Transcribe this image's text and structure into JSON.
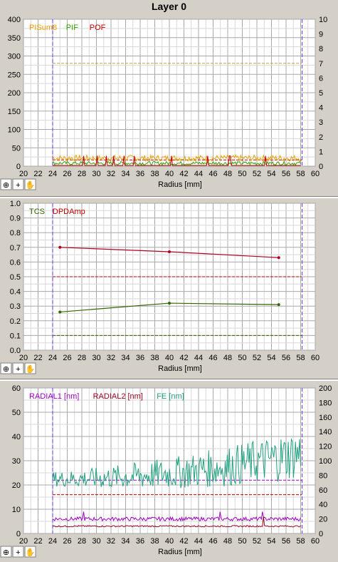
{
  "title": "Layer 0",
  "toolbar_icons": [
    "zoom-icon",
    "crosshair-icon",
    "hand-pan-icon"
  ],
  "chart_data": [
    {
      "type": "line",
      "xlabel": "Radius [mm]",
      "xlim": [
        20,
        60
      ],
      "x_ticks": [
        "20",
        "22",
        "24",
        "26",
        "28",
        "30",
        "32",
        "34",
        "36",
        "38",
        "40",
        "42",
        "44",
        "46",
        "48",
        "50",
        "52",
        "54",
        "56",
        "58",
        "60"
      ],
      "ylim_left": [
        0,
        400
      ],
      "y_ticks_left": [
        "0",
        "50",
        "100",
        "150",
        "200",
        "250",
        "300",
        "350",
        "400"
      ],
      "ylim_right": [
        0,
        10
      ],
      "y_ticks_right": [
        "0",
        "1",
        "2",
        "3",
        "4",
        "5",
        "6",
        "7",
        "8",
        "9",
        "10"
      ],
      "legend": [
        {
          "name": "PISum8",
          "color": "#e8a000"
        },
        {
          "name": "PIF",
          "color": "#33a000"
        },
        {
          "name": "POF",
          "color": "#c00000"
        }
      ],
      "limits": [
        {
          "axis": "left",
          "value": 280,
          "color": "#c8a040"
        },
        {
          "axis": "left",
          "value": 17,
          "color": "#c00000"
        }
      ],
      "markers_x": [
        24,
        58.2
      ],
      "series": [
        {
          "name": "PISum8",
          "color": "#e8a000",
          "axis": "left",
          "x_range": [
            24,
            58
          ],
          "level": 22,
          "noise": 8
        },
        {
          "name": "PIF",
          "color": "#33a000",
          "axis": "left",
          "x_range": [
            24,
            58
          ],
          "level": 8,
          "noise": 5
        },
        {
          "name": "POF",
          "color": "#c00000",
          "axis": "right",
          "x_range": [
            24,
            58
          ],
          "level": 0.05,
          "spikes_x": [
            28.2,
            30.1,
            31.4,
            32.3,
            33.8,
            35.2,
            40.3,
            45.2,
            48.3,
            53.2
          ],
          "spike_value": 0.7
        }
      ]
    },
    {
      "type": "line",
      "xlabel": "Radius [mm]",
      "xlim": [
        20,
        60
      ],
      "x_ticks": [
        "20",
        "22",
        "24",
        "26",
        "28",
        "30",
        "32",
        "34",
        "36",
        "38",
        "40",
        "42",
        "44",
        "46",
        "48",
        "50",
        "52",
        "54",
        "56",
        "58",
        "60"
      ],
      "ylim": [
        0,
        1
      ],
      "y_ticks": [
        "0.0",
        "0.1",
        "0.2",
        "0.3",
        "0.4",
        "0.5",
        "0.6",
        "0.7",
        "0.8",
        "0.9",
        "1.0"
      ],
      "legend": [
        {
          "name": "TCS",
          "color": "#336600"
        },
        {
          "name": "DPDAmp",
          "color": "#c00000"
        }
      ],
      "limits": [
        {
          "value": 0.5,
          "color": "#c00000"
        },
        {
          "value": 0.1,
          "color": "#336600"
        }
      ],
      "markers_x": [
        24,
        58.2
      ],
      "series": [
        {
          "name": "TCS",
          "color": "#336600",
          "x": [
            25,
            40,
            55
          ],
          "y": [
            0.26,
            0.32,
            0.31
          ]
        },
        {
          "name": "DPDAmp",
          "color": "#b00020",
          "x": [
            25,
            40,
            55
          ],
          "y": [
            0.7,
            0.67,
            0.63
          ]
        }
      ]
    },
    {
      "type": "line",
      "xlabel": "Radius [mm]",
      "xlim": [
        20,
        60
      ],
      "x_ticks": [
        "20",
        "22",
        "24",
        "26",
        "28",
        "30",
        "32",
        "34",
        "36",
        "38",
        "40",
        "42",
        "44",
        "46",
        "48",
        "50",
        "52",
        "54",
        "56",
        "58",
        "60"
      ],
      "ylim_left": [
        0,
        60
      ],
      "y_ticks_left": [
        "0",
        "10",
        "20",
        "30",
        "40",
        "50",
        "60"
      ],
      "ylim_right": [
        0,
        200
      ],
      "y_ticks_right": [
        "0",
        "20",
        "40",
        "60",
        "80",
        "100",
        "120",
        "140",
        "160",
        "180",
        "200"
      ],
      "legend": [
        {
          "name": "RADIAL1 [nm]",
          "color": "#a000c0"
        },
        {
          "name": "RADIAL2 [nm]",
          "color": "#a00020"
        },
        {
          "name": "FE [nm]",
          "color": "#20a080"
        }
      ],
      "limits": [
        {
          "axis": "left",
          "value": 22,
          "color": "#a000c0"
        },
        {
          "axis": "left",
          "value": 16,
          "color": "#c00000"
        }
      ],
      "markers_x": [
        24,
        58.2
      ],
      "series": [
        {
          "name": "RADIAL1 [nm]",
          "color": "#a000c0",
          "axis": "left",
          "x_range": [
            24,
            58
          ],
          "level": 6,
          "noise": 0.8,
          "spikes_x": [
            28.3,
            46.9,
            52.8
          ],
          "spike_value": 9
        },
        {
          "name": "RADIAL2 [nm]",
          "color": "#a00020",
          "axis": "left",
          "x_range": [
            24,
            58
          ],
          "level": 3,
          "noise": 0.3,
          "spikes_x": [
            52.9
          ],
          "spike_value": 7
        },
        {
          "name": "FE [nm]",
          "color": "#20a080",
          "axis": "right",
          "x_range": [
            24,
            58
          ],
          "level_start": 75,
          "level_end": 110,
          "noise": 25
        }
      ]
    }
  ]
}
